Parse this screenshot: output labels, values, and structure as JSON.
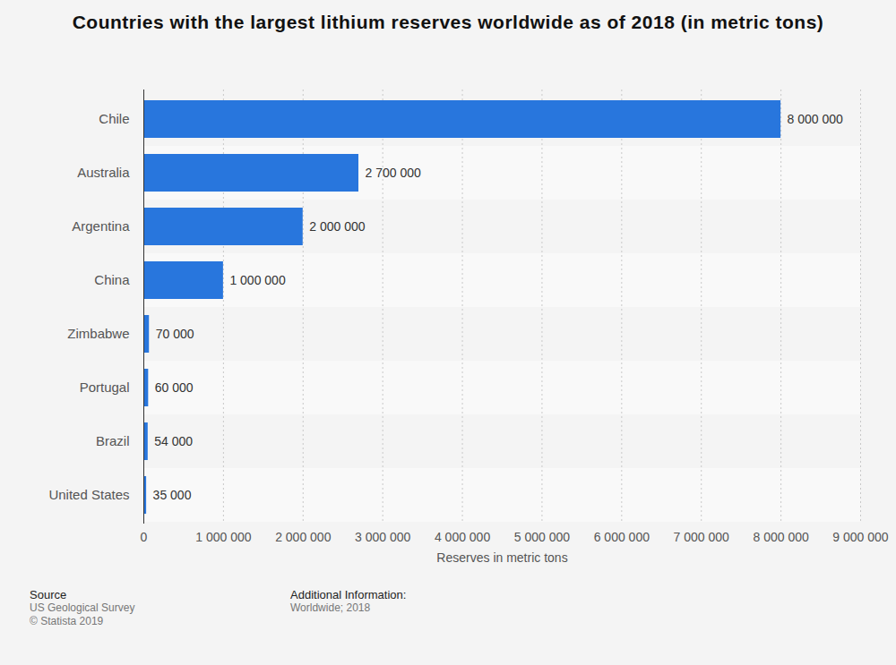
{
  "chart_data": {
    "type": "bar",
    "orientation": "horizontal",
    "title": "Countries with the largest lithium reserves worldwide as of 2018 (in metric tons)",
    "categories": [
      "Chile",
      "Australia",
      "Argentina",
      "China",
      "Zimbabwe",
      "Portugal",
      "Brazil",
      "United States"
    ],
    "values": [
      8000000,
      2700000,
      2000000,
      1000000,
      70000,
      60000,
      54000,
      35000
    ],
    "value_labels": [
      "8 000 000",
      "2 700 000",
      "2 000 000",
      "1 000 000",
      "70 000",
      "60 000",
      "54 000",
      "35 000"
    ],
    "data_labels": true,
    "color": "#2876dd",
    "x_label": "Reserves in metric tons",
    "xlim": [
      0,
      9000000
    ],
    "xticks": [
      0,
      {
        "value": 1000000,
        "label": "1 000 000"
      },
      {
        "value": 2000000,
        "label": "2 000 000"
      },
      {
        "value": 3000000,
        "label": "3 000 000"
      },
      {
        "value": 4000000,
        "label": "4 000 000"
      },
      {
        "value": 5000000,
        "label": "5 000 000"
      },
      {
        "value": 6000000,
        "label": "6 000 000"
      },
      {
        "value": 7000000,
        "label": "7 000 000"
      },
      {
        "value": 8000000,
        "label": "8 000 000"
      },
      {
        "value": 9000000,
        "label": "9 000 000"
      }
    ],
    "grid": true,
    "source": {
      "heading": "Source",
      "lines": [
        "US Geological Survey",
        "© Statista 2019"
      ]
    },
    "additional_information": {
      "heading": "Additional Information:",
      "lines": [
        "Worldwide; 2018"
      ]
    }
  }
}
